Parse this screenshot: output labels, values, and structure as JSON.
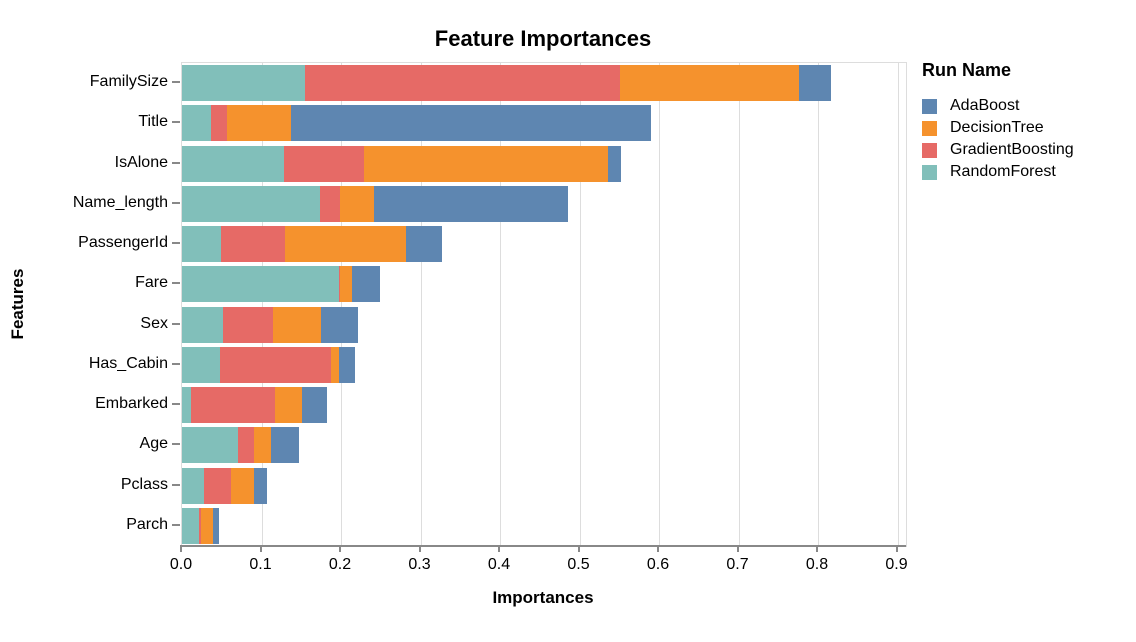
{
  "chart_data": {
    "type": "bar",
    "orientation": "horizontal",
    "stacked": true,
    "title": "Feature Importances",
    "xlabel": "Importances",
    "ylabel": "Features",
    "xlim": [
      0.0,
      0.9
    ],
    "x_ticks": [
      "0.0",
      "0.1",
      "0.2",
      "0.3",
      "0.4",
      "0.5",
      "0.6",
      "0.7",
      "0.8",
      "0.9"
    ],
    "grid": true,
    "categories": [
      "FamilySize",
      "Title",
      "IsAlone",
      "Name_length",
      "PassengerId",
      "Fare",
      "Sex",
      "Has_Cabin",
      "Embarked",
      "Age",
      "Pclass",
      "Parch"
    ],
    "series": [
      {
        "name": "AdaBoost",
        "color": "#5e86b1",
        "values": [
          0.04,
          0.453,
          0.016,
          0.243,
          0.045,
          0.035,
          0.047,
          0.019,
          0.032,
          0.035,
          0.016,
          0.008
        ]
      },
      {
        "name": "DecisionTree",
        "color": "#f5922d",
        "values": [
          0.225,
          0.08,
          0.307,
          0.043,
          0.153,
          0.015,
          0.06,
          0.011,
          0.034,
          0.022,
          0.029,
          0.015
        ]
      },
      {
        "name": "GradientBoosting",
        "color": "#e66a66",
        "values": [
          0.396,
          0.021,
          0.101,
          0.025,
          0.08,
          0.002,
          0.063,
          0.139,
          0.106,
          0.019,
          0.034,
          0.002
        ]
      },
      {
        "name": "RandomForest",
        "color": "#81bfba",
        "values": [
          0.155,
          0.036,
          0.128,
          0.174,
          0.049,
          0.197,
          0.052,
          0.048,
          0.011,
          0.071,
          0.028,
          0.022
        ]
      }
    ],
    "stack_order": [
      "RandomForest",
      "GradientBoosting",
      "DecisionTree",
      "AdaBoost"
    ],
    "legend": {
      "title": "Run Name",
      "position": "right",
      "entries": [
        "AdaBoost",
        "DecisionTree",
        "GradientBoosting",
        "RandomForest"
      ]
    }
  }
}
